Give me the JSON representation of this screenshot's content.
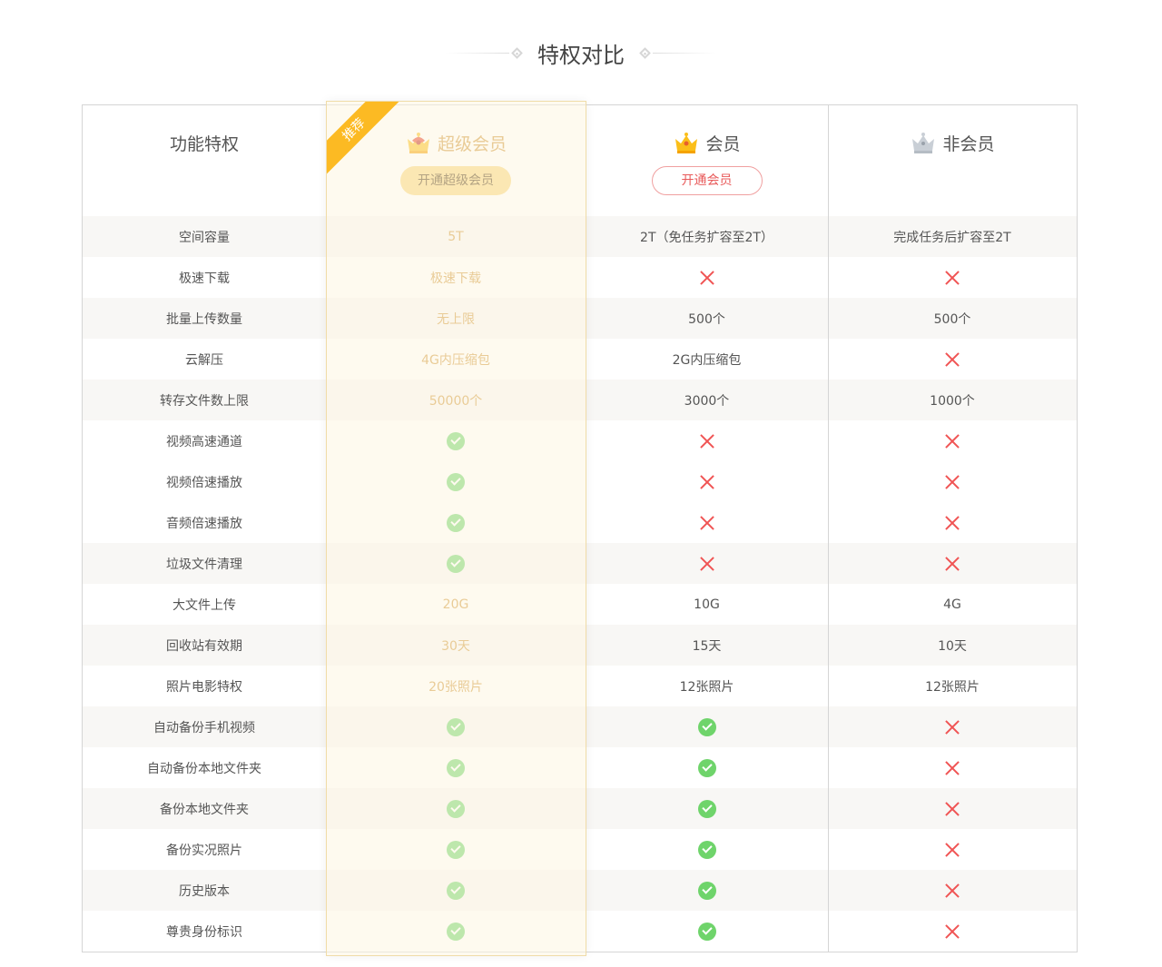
{
  "title": "特权对比",
  "ribbon": "推荐",
  "columns": [
    {
      "name": "功能特权"
    },
    {
      "name": "超级会员",
      "button": "开通超级会员",
      "icon": "crown-gold-red-icon"
    },
    {
      "name": "会员",
      "button": "开通会员",
      "icon": "crown-gold-icon"
    },
    {
      "name": "非会员",
      "icon": "crown-gray-icon"
    }
  ],
  "colors": {
    "accent": "#d0983a",
    "check": "#6fd46b",
    "cross": "#f05454",
    "super_button": "#f8d57b",
    "ribbon": "#fcba23"
  },
  "rows": [
    {
      "feature": "空间容量",
      "super": "5T",
      "vip": "2T（免任务扩容至2T）",
      "free": "完成任务后扩容至2T"
    },
    {
      "feature": "极速下载",
      "super": "极速下载",
      "vip": "cross",
      "free": "cross"
    },
    {
      "feature": "批量上传数量",
      "super": "无上限",
      "vip": "500个",
      "free": "500个"
    },
    {
      "feature": "云解压",
      "super": "4G内压缩包",
      "vip": "2G内压缩包",
      "free": "cross"
    },
    {
      "feature": "转存文件数上限",
      "super": "50000个",
      "vip": "3000个",
      "free": "1000个"
    },
    {
      "feature": "视频高速通道",
      "super": "check",
      "vip": "cross",
      "free": "cross"
    },
    {
      "feature": "视频倍速播放",
      "super": "check",
      "vip": "cross",
      "free": "cross"
    },
    {
      "feature": "音频倍速播放",
      "super": "check",
      "vip": "cross",
      "free": "cross"
    },
    {
      "feature": "垃圾文件清理",
      "super": "check",
      "vip": "cross",
      "free": "cross"
    },
    {
      "feature": "大文件上传",
      "super": "20G",
      "vip": "10G",
      "free": "4G"
    },
    {
      "feature": "回收站有效期",
      "super": "30天",
      "vip": "15天",
      "free": "10天"
    },
    {
      "feature": "照片电影特权",
      "super": "20张照片",
      "vip": "12张照片",
      "free": "12张照片"
    },
    {
      "feature": "自动备份手机视频",
      "super": "check",
      "vip": "check",
      "free": "cross"
    },
    {
      "feature": "自动备份本地文件夹",
      "super": "check",
      "vip": "check",
      "free": "cross"
    },
    {
      "feature": "备份本地文件夹",
      "super": "check",
      "vip": "check",
      "free": "cross"
    },
    {
      "feature": "备份实况照片",
      "super": "check",
      "vip": "check",
      "free": "cross"
    },
    {
      "feature": "历史版本",
      "super": "check",
      "vip": "check",
      "free": "cross"
    },
    {
      "feature": "尊贵身份标识",
      "super": "check",
      "vip": "check",
      "free": "cross"
    }
  ]
}
